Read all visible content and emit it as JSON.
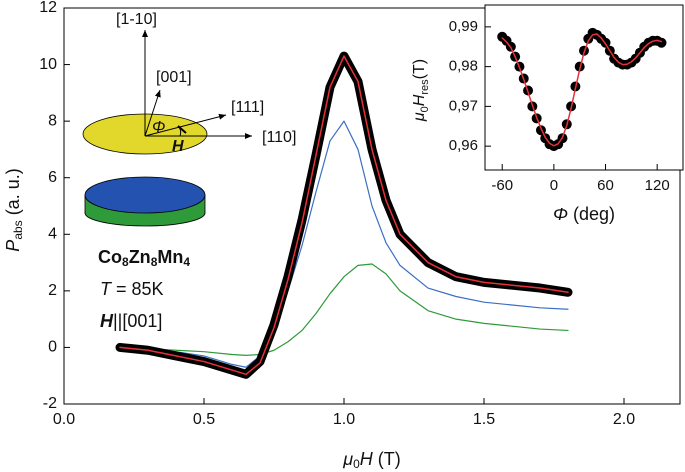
{
  "chart_data": [
    {
      "type": "line",
      "x_label": [
        "μ",
        "0",
        "H",
        " (T)"
      ],
      "y_label": [
        "P",
        "abs",
        " (a. u.)"
      ],
      "x": [
        0.2,
        0.3,
        0.4,
        0.5,
        0.6,
        0.65,
        0.7,
        0.75,
        0.8,
        0.85,
        0.9,
        0.95,
        1.0,
        1.05,
        1.1,
        1.15,
        1.2,
        1.3,
        1.4,
        1.5,
        1.6,
        1.7,
        1.8
      ],
      "series": [
        {
          "color": "#000000",
          "values": [
            0.0,
            -0.1,
            -0.3,
            -0.5,
            -0.8,
            -0.95,
            -0.5,
            0.8,
            2.5,
            4.5,
            6.8,
            9.2,
            10.3,
            9.4,
            7.0,
            5.2,
            4.0,
            3.0,
            2.5,
            2.3,
            2.2,
            2.1,
            1.95
          ]
        },
        {
          "color": "#e8303a",
          "values": [
            0.0,
            -0.1,
            -0.3,
            -0.5,
            -0.8,
            -0.95,
            -0.55,
            0.7,
            2.4,
            4.4,
            6.8,
            9.2,
            10.3,
            9.4,
            7.0,
            5.2,
            4.0,
            3.0,
            2.5,
            2.3,
            2.2,
            2.1,
            1.95
          ]
        },
        {
          "color": "#3b6fc4",
          "values": [
            0.0,
            -0.05,
            -0.15,
            -0.3,
            -0.6,
            -0.7,
            -0.3,
            0.6,
            2.0,
            3.6,
            5.5,
            7.3,
            8.0,
            7.0,
            5.0,
            3.7,
            2.9,
            2.1,
            1.8,
            1.6,
            1.5,
            1.4,
            1.35
          ]
        },
        {
          "color": "#2e9a3a",
          "values": [
            0.0,
            -0.05,
            -0.1,
            -0.15,
            -0.25,
            -0.28,
            -0.25,
            -0.1,
            0.2,
            0.6,
            1.2,
            1.9,
            2.5,
            2.9,
            2.95,
            2.6,
            2.0,
            1.3,
            1.0,
            0.85,
            0.75,
            0.65,
            0.6
          ]
        }
      ],
      "line_widths": [
        9,
        1.5,
        1.2,
        1.2
      ],
      "xlim": [
        0,
        2.2
      ],
      "ylim": [
        -2,
        12
      ],
      "xticks": [
        {
          "value": 0,
          "label": "0.0"
        },
        0.5,
        {
          "value": 1,
          "label": "1.0"
        },
        1.5,
        {
          "value": 2,
          "label": "2.0"
        }
      ],
      "yticks": [
        -2,
        0,
        2,
        4,
        6,
        8,
        10,
        12
      ],
      "annotations": {
        "directions": [
          "[1-10]",
          "[001]",
          "[111]",
          "[110]"
        ],
        "angle": "Φ",
        "field": "H",
        "formula": [
          "Co",
          "8",
          "Zn",
          "8",
          "Mn",
          "4"
        ],
        "temperature": [
          "T",
          " = 85K"
        ],
        "orientation": [
          "H",
          "||[001]"
        ]
      }
    },
    {
      "type": "scatter",
      "x_label": [
        "Φ",
        " (deg)"
      ],
      "y_label": [
        "μ",
        "0",
        "H",
        "res",
        "(T)"
      ],
      "x": [
        -60,
        -55,
        -50,
        -45,
        -40,
        -35,
        -30,
        -25,
        -20,
        -15,
        -10,
        -5,
        0,
        5,
        10,
        15,
        20,
        25,
        30,
        35,
        40,
        45,
        50,
        55,
        60,
        65,
        70,
        75,
        80,
        85,
        90,
        95,
        100,
        105,
        110,
        115,
        120,
        125
      ],
      "series": [
        {
          "color": "#000000",
          "mode": "markers",
          "values": [
            0.9875,
            0.9865,
            0.985,
            0.9825,
            0.98,
            0.977,
            0.974,
            0.97,
            0.967,
            0.964,
            0.962,
            0.9605,
            0.96,
            0.9605,
            0.962,
            0.9655,
            0.97,
            0.975,
            0.98,
            0.984,
            0.987,
            0.9885,
            0.988,
            0.987,
            0.986,
            0.984,
            0.982,
            0.981,
            0.9805,
            0.9805,
            0.981,
            0.982,
            0.9835,
            0.985,
            0.986,
            0.9865,
            0.9865,
            0.986
          ]
        },
        {
          "color": "#e8303a",
          "mode": "line",
          "values": [
            0.9872,
            0.9862,
            0.9848,
            0.9825,
            0.9798,
            0.9768,
            0.9736,
            0.9703,
            0.9672,
            0.9645,
            0.9622,
            0.9607,
            0.9601,
            0.9606,
            0.9622,
            0.9652,
            0.9695,
            0.9745,
            0.9793,
            0.9835,
            0.9865,
            0.988,
            0.9882,
            0.9872,
            0.9857,
            0.984,
            0.9823,
            0.9811,
            0.9805,
            0.9806,
            0.9812,
            0.9822,
            0.9835,
            0.9848,
            0.9858,
            0.9864,
            0.9866,
            0.9863
          ]
        }
      ],
      "xlim": [
        -80,
        150
      ],
      "ylim": [
        0.954,
        0.9955
      ],
      "xticks": [
        -60,
        0,
        60,
        120
      ],
      "yticks": [
        {
          "value": 0.96,
          "label": "0,96"
        },
        {
          "value": 0.97,
          "label": "0,97"
        },
        {
          "value": 0.98,
          "label": "0,98"
        },
        {
          "value": 0.99,
          "label": "0,99"
        }
      ]
    }
  ]
}
